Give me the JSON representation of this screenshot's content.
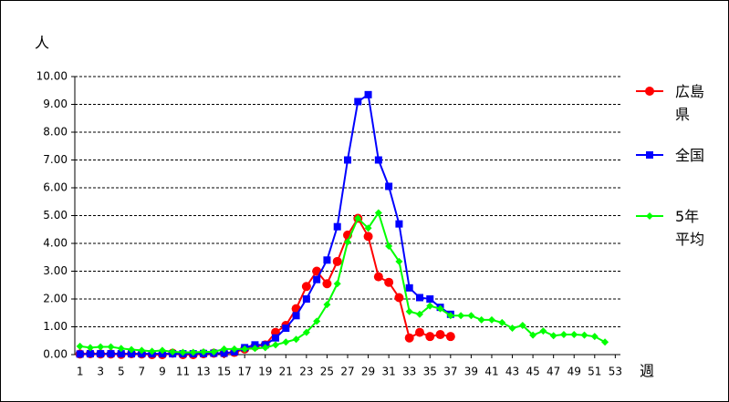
{
  "chart_data": {
    "type": "line",
    "y_unit_label": "人",
    "x_unit_label": "週",
    "x": [
      1,
      2,
      3,
      4,
      5,
      6,
      7,
      8,
      9,
      10,
      11,
      12,
      13,
      14,
      15,
      16,
      17,
      18,
      19,
      20,
      21,
      22,
      23,
      24,
      25,
      26,
      27,
      28,
      29,
      30,
      31,
      32,
      33,
      34,
      35,
      36,
      37,
      38,
      39,
      40,
      41,
      42,
      43,
      44,
      45,
      46,
      47,
      48,
      49,
      50,
      51,
      52
    ],
    "xlim": [
      0.5,
      53.5
    ],
    "xticks": [
      1,
      3,
      5,
      7,
      9,
      11,
      13,
      15,
      17,
      19,
      21,
      23,
      25,
      27,
      29,
      31,
      33,
      35,
      37,
      39,
      41,
      43,
      45,
      47,
      49,
      51,
      53
    ],
    "ylim": [
      0,
      10
    ],
    "yticks": [
      {
        "value": 0,
        "label": "0.00"
      },
      {
        "value": 1,
        "label": "1.00"
      },
      {
        "value": 2,
        "label": "2.00"
      },
      {
        "value": 3,
        "label": "3.00"
      },
      {
        "value": 4,
        "label": "4.00"
      },
      {
        "value": 5,
        "label": "5.00"
      },
      {
        "value": 6,
        "label": "6.00"
      },
      {
        "value": 7,
        "label": "7.00"
      },
      {
        "value": 8,
        "label": "8.00"
      },
      {
        "value": 9,
        "label": "9.00"
      },
      {
        "value": 10,
        "label": "10.00"
      }
    ],
    "grid": true,
    "legend": "right",
    "series": [
      {
        "name": "広島県",
        "color": "#ff0000",
        "marker": "circle",
        "values": [
          0.02,
          0.03,
          0.02,
          0.02,
          0.01,
          0.03,
          0.02,
          0,
          0,
          0.05,
          0,
          0,
          0.03,
          0.05,
          0.05,
          0.08,
          0.2,
          0.3,
          0.35,
          0.8,
          1.05,
          1.65,
          2.45,
          3.0,
          2.55,
          3.35,
          4.3,
          4.9,
          4.25,
          2.8,
          2.6,
          2.05,
          0.6,
          0.8,
          0.65,
          0.72,
          0.65,
          null,
          null,
          null,
          null,
          null,
          null,
          null,
          null,
          null,
          null,
          null,
          null,
          null,
          null,
          null
        ]
      },
      {
        "name": "全国",
        "color": "#0000ff",
        "marker": "square",
        "values": [
          0.02,
          0.03,
          0.03,
          0.03,
          0.03,
          0.03,
          0.03,
          0.03,
          0.03,
          0.03,
          0.03,
          0.03,
          0.04,
          0.05,
          0.05,
          0.1,
          0.25,
          0.35,
          0.35,
          0.6,
          0.95,
          1.4,
          2.0,
          2.7,
          3.4,
          4.6,
          7.0,
          9.1,
          9.35,
          7.0,
          6.05,
          4.7,
          2.4,
          2.05,
          2.0,
          1.7,
          1.45,
          null,
          null,
          null,
          null,
          null,
          null,
          null,
          null,
          null,
          null,
          null,
          null,
          null,
          null,
          null
        ]
      },
      {
        "name": "5年平均",
        "color": "#00ff00",
        "marker": "diamond",
        "values": [
          0.3,
          0.25,
          0.28,
          0.28,
          0.22,
          0.18,
          0.15,
          0.12,
          0.15,
          0.1,
          0.08,
          0.08,
          0.1,
          0.1,
          0.2,
          0.2,
          0.2,
          0.22,
          0.25,
          0.35,
          0.45,
          0.55,
          0.8,
          1.2,
          1.8,
          2.55,
          4.05,
          4.9,
          4.55,
          5.1,
          3.9,
          3.35,
          1.55,
          1.45,
          1.75,
          1.65,
          1.4,
          1.4,
          1.4,
          1.25,
          1.25,
          1.15,
          0.95,
          1.05,
          0.7,
          0.85,
          0.68,
          0.72,
          0.72,
          0.7,
          0.65,
          0.45
        ]
      }
    ]
  }
}
